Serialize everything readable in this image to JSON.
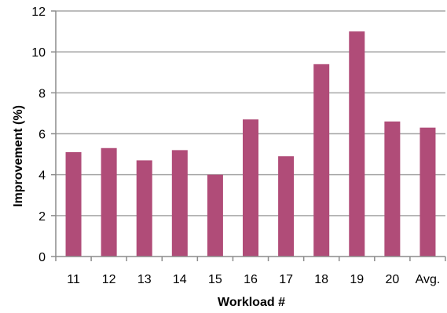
{
  "chart_data": {
    "type": "bar",
    "title": "",
    "xlabel": "Workload #",
    "ylabel": "Improvement (%)",
    "categories": [
      "11",
      "12",
      "13",
      "14",
      "15",
      "16",
      "17",
      "18",
      "19",
      "20",
      "Avg."
    ],
    "values": [
      5.1,
      5.3,
      4.7,
      5.2,
      4.0,
      6.7,
      4.9,
      9.4,
      11.0,
      6.6,
      6.3
    ],
    "ylim": [
      0,
      12
    ],
    "yticks": [
      "0",
      "2",
      "4",
      "6",
      "8",
      "10",
      "12"
    ],
    "grid": true,
    "legend": "none",
    "bar_color": "#b04c78",
    "grid_color": "#a6a6a6",
    "axis_color": "#8c8c8c"
  }
}
